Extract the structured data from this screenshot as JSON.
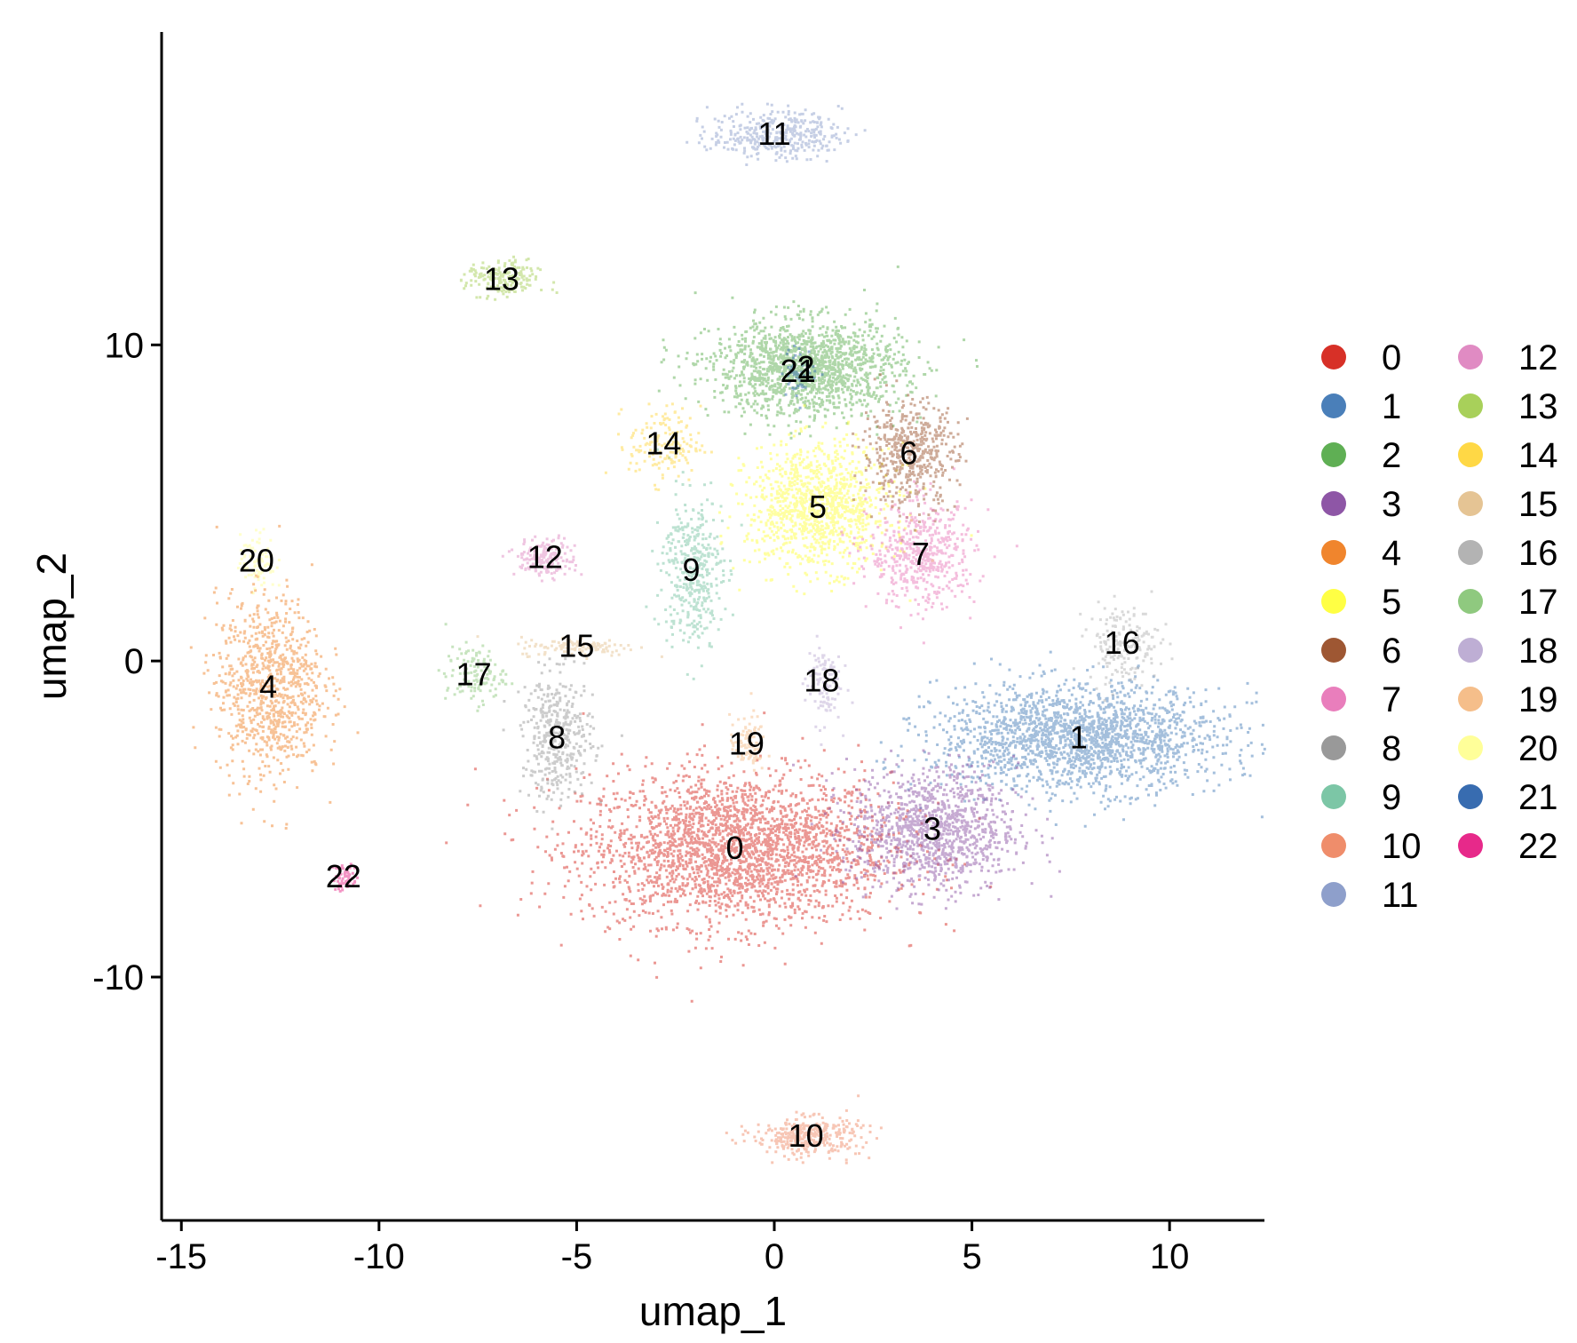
{
  "chart_data": {
    "type": "scatter",
    "title": "",
    "xlabel": "umap_1",
    "ylabel": "umap_2",
    "xlim": [
      -15.5,
      12.4
    ],
    "ylim": [
      -17.7,
      19.9
    ],
    "xticks": [
      -15,
      -10,
      -5,
      0,
      5,
      10
    ],
    "yticks": [
      -10,
      0,
      10
    ],
    "grid": false,
    "legend": {
      "position": "right",
      "columns": 2
    },
    "clusters": [
      {
        "id": "0",
        "label": "0",
        "color": "#D73027",
        "x": -1.0,
        "y": -5.9,
        "sx": 2.6,
        "sy": 1.6,
        "n": 2600
      },
      {
        "id": "1",
        "label": "1",
        "color": "#4A7FB9",
        "x": 7.7,
        "y": -2.4,
        "sx": 2.4,
        "sy": 1.1,
        "n": 1900
      },
      {
        "id": "2",
        "label": "2",
        "color": "#5FAF54",
        "x": 0.8,
        "y": 9.3,
        "sx": 1.6,
        "sy": 1.0,
        "n": 1500
      },
      {
        "id": "3",
        "label": "3",
        "color": "#8E56A6",
        "x": 4.0,
        "y": -5.3,
        "sx": 1.4,
        "sy": 1.3,
        "n": 1100
      },
      {
        "id": "4",
        "label": "4",
        "color": "#F0852D",
        "x": -12.8,
        "y": -0.8,
        "sx": 0.9,
        "sy": 1.9,
        "n": 900
      },
      {
        "id": "5",
        "label": "5",
        "color": "#FFFF44",
        "x": 1.1,
        "y": 4.9,
        "sx": 1.2,
        "sy": 1.3,
        "n": 1100
      },
      {
        "id": "6",
        "label": "6",
        "color": "#9E5733",
        "x": 3.4,
        "y": 6.6,
        "sx": 0.8,
        "sy": 1.1,
        "n": 500
      },
      {
        "id": "7",
        "label": "7",
        "color": "#E97EBC",
        "x": 3.7,
        "y": 3.4,
        "sx": 0.9,
        "sy": 1.1,
        "n": 500
      },
      {
        "id": "8",
        "label": "8",
        "color": "#999999",
        "x": -5.5,
        "y": -2.4,
        "sx": 0.6,
        "sy": 1.3,
        "n": 400
      },
      {
        "id": "9",
        "label": "9",
        "color": "#7CC6A6",
        "x": -2.1,
        "y": 2.9,
        "sx": 0.5,
        "sy": 1.6,
        "n": 400
      },
      {
        "id": "10",
        "label": "10",
        "color": "#EF8D6B",
        "x": 0.8,
        "y": -15.0,
        "sx": 0.9,
        "sy": 0.4,
        "n": 350
      },
      {
        "id": "11",
        "label": "11",
        "color": "#8E9FCB",
        "x": 0.0,
        "y": 16.7,
        "sx": 1.1,
        "sy": 0.5,
        "n": 380
      },
      {
        "id": "12",
        "label": "12",
        "color": "#E08BC3",
        "x": -5.8,
        "y": 3.3,
        "sx": 0.5,
        "sy": 0.4,
        "n": 180
      },
      {
        "id": "13",
        "label": "13",
        "color": "#A8D05A",
        "x": -6.9,
        "y": 12.1,
        "sx": 0.6,
        "sy": 0.4,
        "n": 200
      },
      {
        "id": "14",
        "label": "14",
        "color": "#FFD845",
        "x": -2.8,
        "y": 6.9,
        "sx": 0.6,
        "sy": 0.8,
        "n": 160
      },
      {
        "id": "15",
        "label": "15",
        "color": "#E5C494",
        "x": -5.0,
        "y": 0.5,
        "sx": 1.0,
        "sy": 0.2,
        "n": 120
      },
      {
        "id": "16",
        "label": "16",
        "color": "#B3B3B3",
        "x": 8.8,
        "y": 0.6,
        "sx": 0.6,
        "sy": 0.8,
        "n": 200
      },
      {
        "id": "17",
        "label": "17",
        "color": "#8FC97F",
        "x": -7.6,
        "y": -0.4,
        "sx": 0.5,
        "sy": 0.6,
        "n": 120
      },
      {
        "id": "18",
        "label": "18",
        "color": "#BEAED4",
        "x": 1.2,
        "y": -0.6,
        "sx": 0.3,
        "sy": 0.9,
        "n": 110
      },
      {
        "id": "19",
        "label": "19",
        "color": "#F5BE8A",
        "x": -0.7,
        "y": -2.6,
        "sx": 0.3,
        "sy": 0.6,
        "n": 90
      },
      {
        "id": "20",
        "label": "20",
        "color": "#FFFF99",
        "x": -13.1,
        "y": 3.2,
        "sx": 0.3,
        "sy": 0.6,
        "n": 80
      },
      {
        "id": "21",
        "label": "21",
        "color": "#386CB0",
        "x": 0.6,
        "y": 9.2,
        "sx": 0.3,
        "sy": 0.5,
        "n": 60
      },
      {
        "id": "22",
        "label": "22",
        "color": "#E7298A",
        "x": -10.9,
        "y": -6.8,
        "sx": 0.2,
        "sy": 0.3,
        "n": 60
      }
    ],
    "point_alpha": 0.5
  }
}
